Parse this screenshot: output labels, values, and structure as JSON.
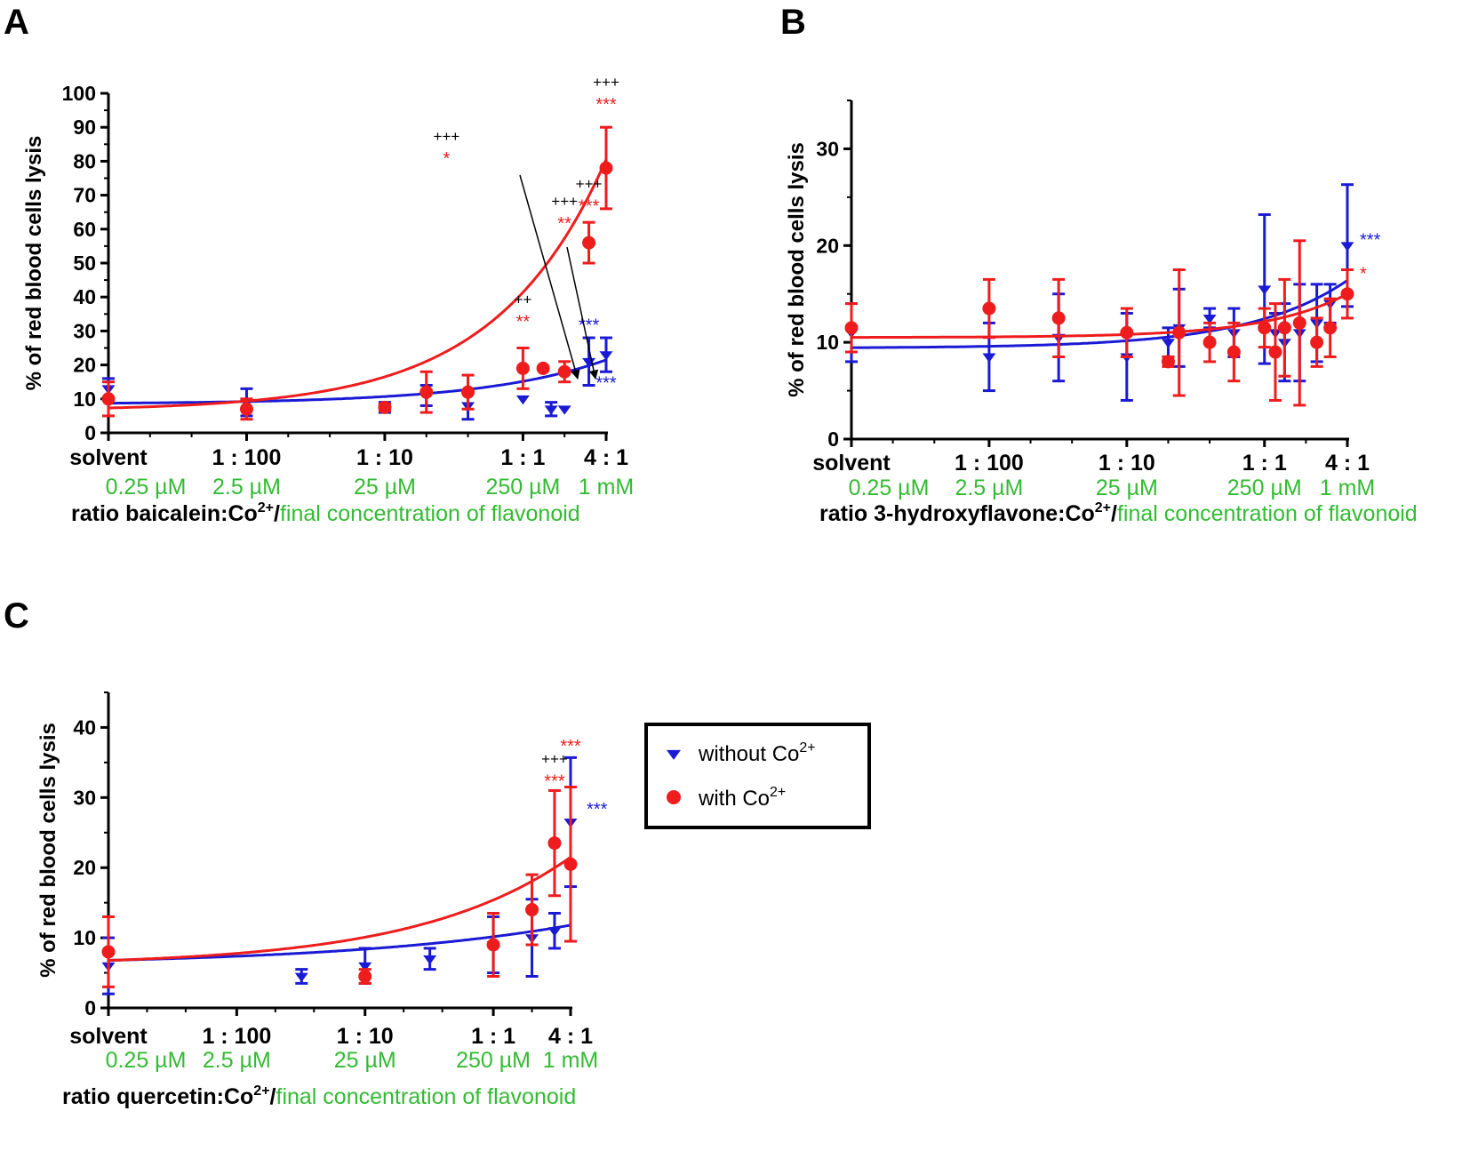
{
  "colors": {
    "without": "#1a1ad4",
    "with": "#ee1c1c",
    "concentration": "#33bb33",
    "plus": "#000000"
  },
  "legend": {
    "items": [
      {
        "label": "without Co",
        "sup": "2+",
        "marker": "triangle-down",
        "color": "#1a1ad4"
      },
      {
        "label": "with Co",
        "sup": "2+",
        "marker": "circle",
        "color": "#ee1c1c"
      }
    ]
  },
  "chart_data": [
    {
      "panel": "A",
      "type": "scatter",
      "ylabel": "% of red blood cells lysis",
      "xlabel_part1": "ratio baicalein:Co",
      "xlabel_sup": "2+",
      "xlabel_part2": "/",
      "xlabel_part3": "final concentration of flavonoid",
      "ylim": [
        0,
        100
      ],
      "yticks": [
        0,
        10,
        20,
        30,
        40,
        50,
        60,
        70,
        80,
        90,
        100
      ],
      "x_scale": "log",
      "xlim": [
        0.25,
        1000
      ],
      "x_categories": [
        {
          "x": 0.25,
          "ratio": "solvent",
          "conc": "0.25 µM"
        },
        {
          "x": 2.5,
          "ratio": "1 : 100",
          "conc": "2.5 µM"
        },
        {
          "x": 25,
          "ratio": "1 : 10",
          "conc": "25 µM"
        },
        {
          "x": 250,
          "ratio": "1 : 1",
          "conc": "250 µM"
        },
        {
          "x": 1000,
          "ratio": "4 : 1",
          "conc": "1 mM"
        }
      ],
      "series": [
        {
          "name": "without Co2+",
          "key": "without",
          "marker": "triangle-down",
          "points": [
            {
              "x": 0.25,
              "y": 13,
              "err": 3
            },
            {
              "x": 2.5,
              "y": 9,
              "err": 4
            },
            {
              "x": 25,
              "y": 7.5,
              "err": 1.5
            },
            {
              "x": 50,
              "y": 11,
              "err": 3
            },
            {
              "x": 100,
              "y": 8,
              "err": 4
            },
            {
              "x": 250,
              "y": 10,
              "err": 0
            },
            {
              "x": 400,
              "y": 7,
              "err": 2
            },
            {
              "x": 500,
              "y": 7,
              "err": 0
            },
            {
              "x": 750,
              "y": 21,
              "err": 7
            },
            {
              "x": 1000,
              "y": 23,
              "err": 5
            }
          ],
          "fit": {
            "bottom": 8.5,
            "amp": 13,
            "k": 4
          }
        },
        {
          "name": "with Co2+",
          "key": "with",
          "marker": "circle",
          "points": [
            {
              "x": 0.25,
              "y": 10,
              "err": 5
            },
            {
              "x": 2.5,
              "y": 7,
              "err": 3
            },
            {
              "x": 25,
              "y": 7.5,
              "err": 1
            },
            {
              "x": 50,
              "y": 12,
              "err": 6
            },
            {
              "x": 100,
              "y": 12,
              "err": 5
            },
            {
              "x": 250,
              "y": 19,
              "err": 6
            },
            {
              "x": 350,
              "y": 19,
              "err": 0
            },
            {
              "x": 500,
              "y": 18,
              "err": 3
            },
            {
              "x": 750,
              "y": 56,
              "err": 6
            },
            {
              "x": 1000,
              "y": 78,
              "err": 12
            }
          ],
          "fit": {
            "bottom": 6.5,
            "amp": 74,
            "k": 4.5
          }
        }
      ],
      "annotations": [
        {
          "x": 1000,
          "y": 95,
          "stars": "***",
          "plus": "+++"
        },
        {
          "x": 750,
          "y": 65,
          "stars": "***",
          "plus": "+++"
        },
        {
          "x": 500,
          "y": 60,
          "stars": "**",
          "plus": "+++"
        },
        {
          "x": 250,
          "y": 31,
          "stars": "**",
          "plus": "++"
        },
        {
          "x": 70,
          "y": 79,
          "stars": "*",
          "plus": "+++"
        },
        {
          "x": 750,
          "y": 30,
          "stars": "***",
          "color": "without"
        },
        {
          "x": 1000,
          "y": 13,
          "stars": "***",
          "color": "without"
        }
      ]
    },
    {
      "panel": "B",
      "type": "scatter",
      "ylabel": "% of red blood cells lysis",
      "xlabel_part1": "ratio 3-hydroxyflavone:Co",
      "xlabel_sup": "2+",
      "xlabel_part2": "/",
      "xlabel_part3": "final concentration of flavonoid",
      "ylim": [
        0,
        35
      ],
      "yticks": [
        0,
        10,
        20,
        30
      ],
      "x_scale": "log",
      "xlim": [
        0.25,
        1000
      ],
      "x_categories": [
        {
          "x": 0.25,
          "ratio": "solvent",
          "conc": "0.25 µM"
        },
        {
          "x": 2.5,
          "ratio": "1 : 100",
          "conc": "2.5 µM"
        },
        {
          "x": 25,
          "ratio": "1 : 10",
          "conc": "25 µM"
        },
        {
          "x": 250,
          "ratio": "1 : 1",
          "conc": "250 µM"
        },
        {
          "x": 1000,
          "ratio": "4 : 1",
          "conc": "1 mM"
        }
      ],
      "series": [
        {
          "name": "without Co2+",
          "key": "without",
          "marker": "triangle-down",
          "points": [
            {
              "x": 0.25,
              "y": 11,
              "err": 3
            },
            {
              "x": 2.5,
              "y": 8.5,
              "err": 3.5
            },
            {
              "x": 8,
              "y": 10.5,
              "err": 4.5
            },
            {
              "x": 25,
              "y": 8.5,
              "err": 4.5
            },
            {
              "x": 50,
              "y": 10,
              "err": 1.5
            },
            {
              "x": 60,
              "y": 11.5,
              "err": 4
            },
            {
              "x": 100,
              "y": 12.5,
              "err": 1
            },
            {
              "x": 150,
              "y": 11,
              "err": 2.5
            },
            {
              "x": 250,
              "y": 15.5,
              "err": 7.7
            },
            {
              "x": 300,
              "y": 11,
              "err": 2
            },
            {
              "x": 350,
              "y": 10,
              "err": 4
            },
            {
              "x": 450,
              "y": 11,
              "err": 5
            },
            {
              "x": 600,
              "y": 12,
              "err": 4
            },
            {
              "x": 750,
              "y": 14,
              "err": 2
            },
            {
              "x": 1000,
              "y": 20,
              "err": 6.3
            }
          ],
          "fit": {
            "bottom": 9.4,
            "amp": 7,
            "k": 5
          }
        },
        {
          "name": "with Co2+",
          "key": "with",
          "marker": "circle",
          "points": [
            {
              "x": 0.25,
              "y": 11.5,
              "err": 2.5
            },
            {
              "x": 2.5,
              "y": 13.5,
              "err": 3
            },
            {
              "x": 8,
              "y": 12.5,
              "err": 4
            },
            {
              "x": 25,
              "y": 11,
              "err": 2.5
            },
            {
              "x": 50,
              "y": 8,
              "err": 0.5
            },
            {
              "x": 60,
              "y": 11,
              "err": 6.5
            },
            {
              "x": 100,
              "y": 10,
              "err": 2
            },
            {
              "x": 150,
              "y": 9,
              "err": 3
            },
            {
              "x": 250,
              "y": 11.5,
              "err": 2
            },
            {
              "x": 300,
              "y": 9,
              "err": 5
            },
            {
              "x": 350,
              "y": 11.5,
              "err": 5
            },
            {
              "x": 450,
              "y": 12,
              "err": 8.5
            },
            {
              "x": 600,
              "y": 10,
              "err": 2.5
            },
            {
              "x": 750,
              "y": 11.5,
              "err": 3
            },
            {
              "x": 1000,
              "y": 15,
              "err": 2.5
            }
          ],
          "fit": {
            "bottom": 10.5,
            "amp": 4.5,
            "k": 6
          }
        }
      ],
      "annotations": [
        {
          "x": 1000,
          "y": 20,
          "stars": "***",
          "color": "without",
          "dx": 14
        },
        {
          "x": 1000,
          "y": 16.5,
          "stars": "*",
          "color": "with",
          "dx": 14
        }
      ]
    },
    {
      "panel": "C",
      "type": "scatter",
      "ylabel": "% of red blood cells lysis",
      "xlabel_part1": "ratio quercetin:Co",
      "xlabel_sup": "2+",
      "xlabel_part2": "/",
      "xlabel_part3": "final concentration of flavonoid",
      "ylim": [
        0,
        45
      ],
      "yticks": [
        0,
        10,
        20,
        30,
        40
      ],
      "x_scale": "log",
      "xlim": [
        0.25,
        1000
      ],
      "x_categories": [
        {
          "x": 0.25,
          "ratio": "solvent",
          "conc": "0.25 µM"
        },
        {
          "x": 2.5,
          "ratio": "1 : 100",
          "conc": "2.5 µM"
        },
        {
          "x": 25,
          "ratio": "1 : 10",
          "conc": "25 µM"
        },
        {
          "x": 250,
          "ratio": "1 : 1",
          "conc": "250 µM"
        },
        {
          "x": 1000,
          "ratio": "4 : 1",
          "conc": "1 mM"
        }
      ],
      "series": [
        {
          "name": "without Co2+",
          "key": "without",
          "marker": "triangle-down",
          "points": [
            {
              "x": 0.25,
              "y": 6,
              "err": 4
            },
            {
              "x": 8,
              "y": 4.5,
              "err": 1
            },
            {
              "x": 25,
              "y": 6,
              "err": 2.5
            },
            {
              "x": 80,
              "y": 7,
              "err": 1.5
            },
            {
              "x": 250,
              "y": 9,
              "err": 4
            },
            {
              "x": 500,
              "y": 10,
              "err": 5.5
            },
            {
              "x": 750,
              "y": 11,
              "err": 2.5
            },
            {
              "x": 1000,
              "y": 26.5,
              "err": 9.2
            }
          ],
          "fit": {
            "bottom": 6,
            "amp": 5.8,
            "k": 2
          }
        },
        {
          "name": "with Co2+",
          "key": "with",
          "marker": "circle",
          "points": [
            {
              "x": 0.25,
              "y": 8,
              "err": 5
            },
            {
              "x": 25,
              "y": 4.5,
              "err": 1
            },
            {
              "x": 250,
              "y": 9,
              "err": 4.5
            },
            {
              "x": 500,
              "y": 14,
              "err": 5
            },
            {
              "x": 750,
              "y": 23.5,
              "err": 7.5
            },
            {
              "x": 1000,
              "y": 20.5,
              "err": 11
            }
          ],
          "fit": {
            "bottom": 6,
            "amp": 15.5,
            "k": 3
          }
        }
      ],
      "annotations": [
        {
          "x": 750,
          "y": 31.5,
          "stars": "***",
          "plus": "+++"
        },
        {
          "x": 1000,
          "y": 36.5,
          "stars": "***",
          "color": "with"
        },
        {
          "x": 1000,
          "y": 27.5,
          "stars": "***",
          "color": "without",
          "dx": 18
        }
      ]
    }
  ]
}
